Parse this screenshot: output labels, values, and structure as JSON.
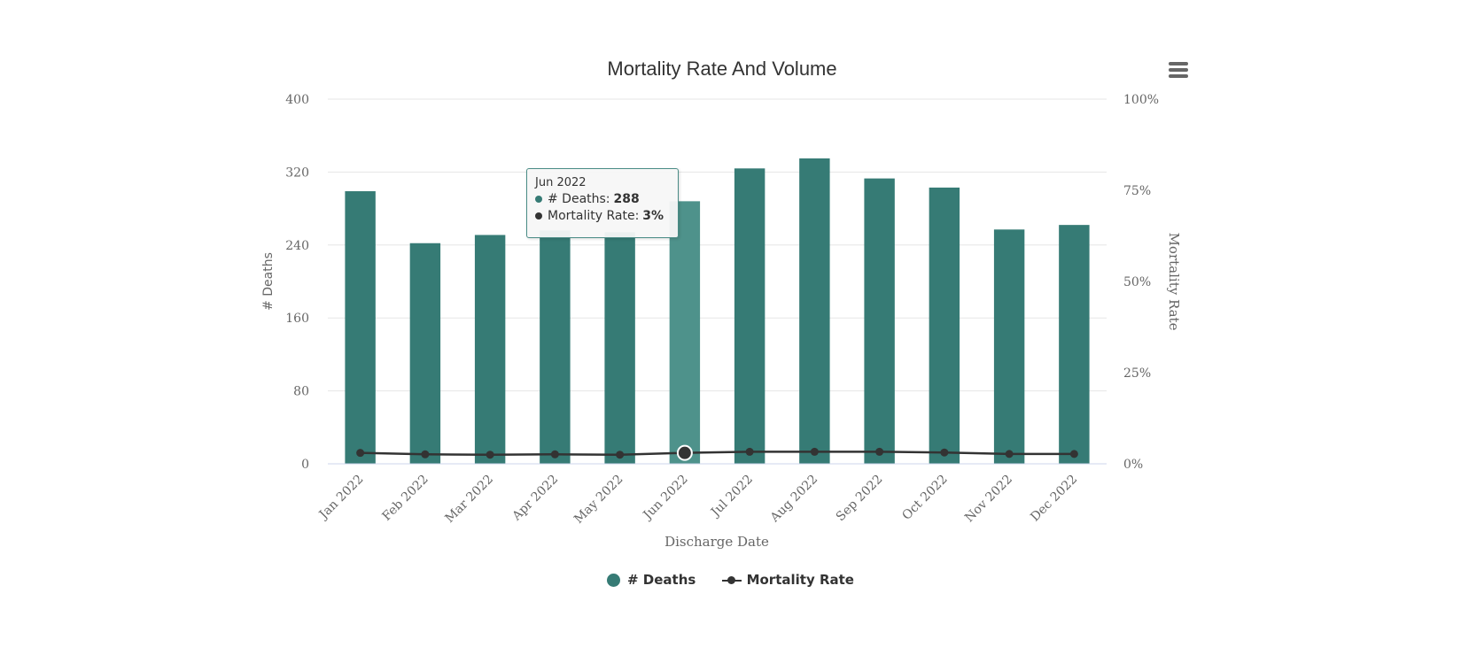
{
  "chart_data": {
    "type": "bar",
    "title": "Mortality Rate And Volume",
    "xlabel": "Discharge Date",
    "ylabel": "# Deaths",
    "y2label": "Mortality Rate",
    "categories": [
      "Jan 2022",
      "Feb 2022",
      "Mar 2022",
      "Apr 2022",
      "May 2022",
      "Jun 2022",
      "Jul 2022",
      "Aug 2022",
      "Sep 2022",
      "Oct 2022",
      "Nov 2022",
      "Dec 2022"
    ],
    "ylim": [
      0,
      400
    ],
    "yticks": [
      0,
      80,
      160,
      240,
      320,
      400
    ],
    "y2lim": [
      0,
      100
    ],
    "y2ticks": [
      "0%",
      "25%",
      "50%",
      "75%",
      "100%"
    ],
    "grid": true,
    "legend_position": "bottom-center",
    "series": [
      {
        "name": "# Deaths",
        "type": "bar",
        "color": "#367b75",
        "highlight_color": "#4e928b",
        "values": [
          299,
          242,
          251,
          256,
          254,
          288,
          324,
          335,
          313,
          303,
          257,
          262
        ]
      },
      {
        "name": "Mortality Rate",
        "type": "line",
        "axis": "right",
        "color": "#333333",
        "values": [
          3.0,
          2.6,
          2.5,
          2.6,
          2.5,
          3.0,
          3.3,
          3.3,
          3.3,
          3.1,
          2.7,
          2.7
        ]
      }
    ],
    "highlighted_index": 5
  },
  "tooltip": {
    "header": "Jun 2022",
    "deaths_label": "# Deaths:",
    "deaths_value": "288",
    "rate_label": "Mortality Rate:",
    "rate_value": "3%"
  },
  "legend": {
    "deaths": "# Deaths",
    "rate": "Mortality Rate"
  },
  "menu": {
    "icon": "hamburger-menu-icon"
  }
}
